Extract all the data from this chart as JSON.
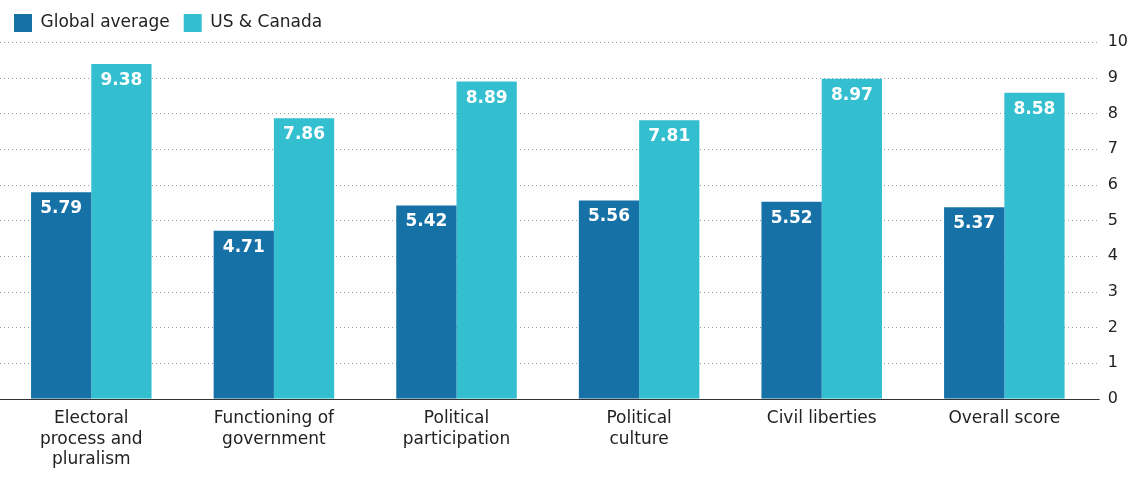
{
  "chart_data": {
    "type": "bar",
    "categories": [
      "Electoral process and pluralism",
      "Functioning of government",
      "Political participation",
      "Political culture",
      "Civil liberties",
      "Overall score"
    ],
    "series": [
      {
        "name": "Global average",
        "color": "#1571a6",
        "values": [
          5.79,
          4.71,
          5.42,
          5.56,
          5.52,
          5.37
        ]
      },
      {
        "name": "US & Canada",
        "color": "#33bfd0",
        "values": [
          9.38,
          7.86,
          8.89,
          7.81,
          8.97,
          8.58
        ]
      }
    ],
    "ylim": [
      0,
      10
    ],
    "yticks": [
      0,
      1,
      2,
      3,
      4,
      5,
      6,
      7,
      8,
      9,
      10
    ],
    "grid": "y",
    "legend": "top left",
    "data_labels": true
  }
}
